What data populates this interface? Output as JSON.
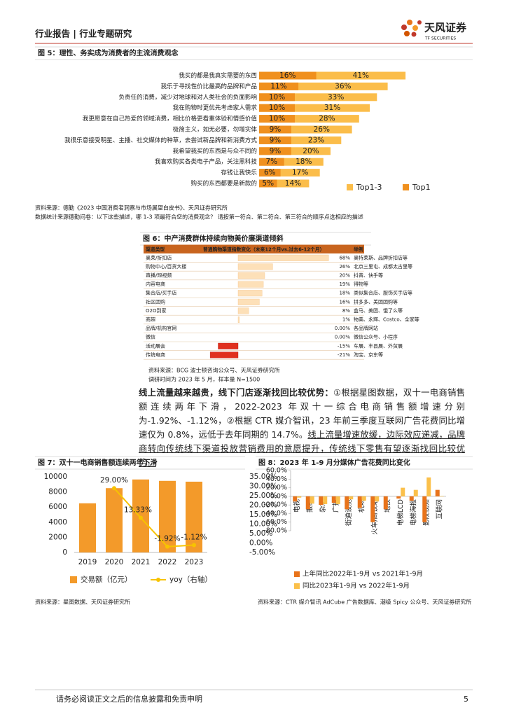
{
  "header": {
    "section": "行业报告 | 行业专题研究",
    "brand": "天风证券",
    "brand_en": "TF SECURITIES"
  },
  "chart_data": [
    {
      "type": "bar",
      "orientation": "horizontal",
      "overlap": true,
      "title": "图 5：理性、务实成为消费者的主流消费观念",
      "categories": [
        "我买的都是我真实需要的东西",
        "我乐于寻找性价比最高的品牌和产品",
        "负责任的消费，减少对地球和对人类社会的负面影响",
        "我在购物时更优先考虑家人需求",
        "我更愿意在自己热爱的领域消费，相比价格更看重体验和情感价值",
        "极简主义，如无必要，勿增实体",
        "我很乐意接受明星、主播、社交媒体的种草，去尝试新品牌和新消费方式",
        "我希望我买的东西是与众不同的",
        "我喜欢购买各类电子产品，关注黑科技",
        "存钱让我快乐",
        "购买的东西都要是新款的"
      ],
      "series": [
        {
          "name": "Top1-3",
          "color": "#fbbd4a",
          "values": [
            41,
            36,
            33,
            31,
            28,
            26,
            23,
            20,
            18,
            17,
            14
          ],
          "value_labels": [
            "41%",
            "36%",
            "33%",
            "31%",
            "28%",
            "26%",
            "23%",
            "20%",
            "18%",
            "17%",
            "14%"
          ]
        },
        {
          "name": "Top1",
          "color": "#f0901e",
          "values": [
            16,
            11,
            10,
            10,
            10,
            9,
            9,
            9,
            7,
            6,
            5
          ],
          "value_labels": [
            "16%",
            "11%",
            "10%",
            "10%",
            "10%",
            "9%",
            "9%",
            "9%",
            "7%",
            "6%",
            "5%"
          ]
        }
      ],
      "notes": [
        "资料来源：德勤《2023 中国消费者洞察与市场展望白皮书》、天风证券研究所",
        "数据统计来源德勤问卷：以下这些描述，哪 1-3 项最符合您的消费观念？ 请按第一符合、第二符合、第三符合的顺序点选相应的描述"
      ]
    },
    {
      "type": "bar",
      "title": "图 7：双十一电商销售额连续两年下滑",
      "categories": [
        "2019",
        "2020",
        "2021",
        "2022",
        "2023"
      ],
      "series": [
        {
          "name": "交易额（亿元）",
          "type": "bar",
          "color": "#f39a2a",
          "values": [
            6500,
            8500,
            9650,
            9465,
            9360
          ]
        },
        {
          "name": "yoy（右轴）",
          "type": "line",
          "axis": "y2",
          "color": "#f7c300",
          "values": [
            null,
            29.0,
            13.33,
            -1.92,
            -1.12
          ],
          "value_labels": [
            null,
            "29.00%",
            "13.33%",
            "-1.92%",
            "-1.12%"
          ]
        }
      ],
      "ylim": [
        0,
        10000
      ],
      "yticks": [
        0,
        2000,
        4000,
        6000,
        8000,
        10000
      ],
      "y2lim": [
        -5,
        35
      ],
      "y2ticks": [
        {
          "value": -5,
          "label": "-5.00%"
        },
        {
          "value": 0,
          "label": "0.00%"
        },
        {
          "value": 5,
          "label": "5.00%"
        },
        {
          "value": 10,
          "label": "10.00%"
        },
        {
          "value": 15,
          "label": "15.00%"
        },
        {
          "value": 20,
          "label": "20.00%"
        },
        {
          "value": 25,
          "label": "25.00%"
        },
        {
          "value": 30,
          "label": "30.00%"
        },
        {
          "value": 35,
          "label": "35.00%"
        }
      ],
      "grid": false,
      "notes": [
        "资料来源：星图数据、天风证券研究所"
      ]
    },
    {
      "type": "bar",
      "title": "图 8：2023 年 1-9 月分媒体广告花费同比变化",
      "categories": [
        "电视",
        "报纸",
        "杂志",
        "广播",
        "街道设施",
        "机场",
        "火车/高铁站",
        "地铁",
        "电梯LCD",
        "电梯海报",
        "影院视频",
        "互联网"
      ],
      "series": [
        {
          "name": "上年同比2022年1-9月 vs 2021年1-9月",
          "color": "#e8731a",
          "values": [
            -12,
            -30,
            -20,
            -15,
            -30,
            -27,
            -60,
            -30,
            -5,
            -10,
            -60,
            15
          ]
        },
        {
          "name": "同比2023年1-9月 vs 2022年1-9月",
          "color": "#fbc04a",
          "values": [
            -3,
            -17,
            -18,
            -18,
            -7,
            -10,
            -12,
            0,
            20,
            15,
            44,
            1
          ]
        }
      ],
      "ylim": [
        -80,
        60
      ],
      "yticks": [
        {
          "value": -80,
          "label": "-80.0%"
        },
        {
          "value": -60,
          "label": "-60.0%"
        },
        {
          "value": -40,
          "label": "-40.0%"
        },
        {
          "value": -20,
          "label": "-20.0%"
        },
        {
          "value": 0,
          "label": "0.0%"
        },
        {
          "value": 20,
          "label": "20.0%"
        },
        {
          "value": 40,
          "label": "40.0%"
        },
        {
          "value": 60,
          "label": "60.0%"
        }
      ],
      "grid": false,
      "notes": [
        "资料来源：CTR 媒介智讯 AdCube 广告数据库、潮级 Spicy 公众号、天风证券研究所"
      ]
    }
  ],
  "figure6": {
    "title": "图 6：中产消费群体持续向物美价廉渠道倾斜",
    "columns": [
      "渠道类型",
      "普通购物渠道指数变化（未来12个月vs.过去6-12个月）",
      "举例"
    ],
    "rows": [
      {
        "channel": "奥莱/折扣店",
        "value": 68,
        "value_label": "68%",
        "example": "奥特莱斯、品牌折扣店等"
      },
      {
        "channel": "购物中心/百货大楼",
        "value": 26,
        "value_label": "26%",
        "example": "北京三里屯、成都太古里等"
      },
      {
        "channel": "直播/短视频",
        "value": 20,
        "value_label": "20%",
        "example": "抖音、快手等"
      },
      {
        "channel": "内容电商",
        "value": 19,
        "value_label": "19%",
        "example": "得物等"
      },
      {
        "channel": "集合店/买手店",
        "value": 18,
        "value_label": "18%",
        "example": "类似集合店、服饰买手店等"
      },
      {
        "channel": "社区团购",
        "value": 16,
        "value_label": "16%",
        "example": "拼多多、美团团购等"
      },
      {
        "channel": "O2O到家",
        "value": 8,
        "value_label": "8%",
        "example": "盒马、美团、饿了么等"
      },
      {
        "channel": "商超",
        "value": 1,
        "value_label": "1%",
        "example": "物美、永辉、Costco、全家等"
      },
      {
        "channel": "品牌/机构官网",
        "value": 0,
        "value_label": "0.00%",
        "example": "各品牌网站"
      },
      {
        "channel": "微信",
        "value": 0,
        "value_label": "0.00%",
        "example": "微信公众号、小程序"
      },
      {
        "channel": "活动展会",
        "value": -15,
        "value_label": "-15%",
        "example": "车展、丰县展、外贸展"
      },
      {
        "channel": "传统电商",
        "value": -21,
        "value_label": "-21%",
        "example": "淘宝、京东等"
      }
    ],
    "notes": [
      "资料来源：BCG 波士顿咨询公众号、天风证券研究所",
      "调研时间为 2023 年 5 月，样本量 N=1500"
    ]
  },
  "body": {
    "paragraph": [
      {
        "style": "bold",
        "text": "线上流量越来越贵，线下门店逐渐找回比较优势："
      },
      {
        "style": "normal",
        "text": "①根据星图数据，双十一电商销售额连续两年下滑，2022-2023 年双十一综合电商销售额增速分别为-1.92%、-1.12%，②根据 CTR 媒介智讯，23 年前三季度互联网广告花费同比增速仅为 0.8%，远低于去年同期的 14.7%。"
      },
      {
        "style": "underline",
        "text": "线上流量增速放缓，边际效应递减，品牌商转向传统线下渠道投放营销费用的意愿提升，传统线下零售有望逐渐找回比较优势。"
      }
    ]
  },
  "footer": {
    "disclaimer": "请务必阅读正文之后的信息披露和免责申明",
    "page": "5"
  }
}
